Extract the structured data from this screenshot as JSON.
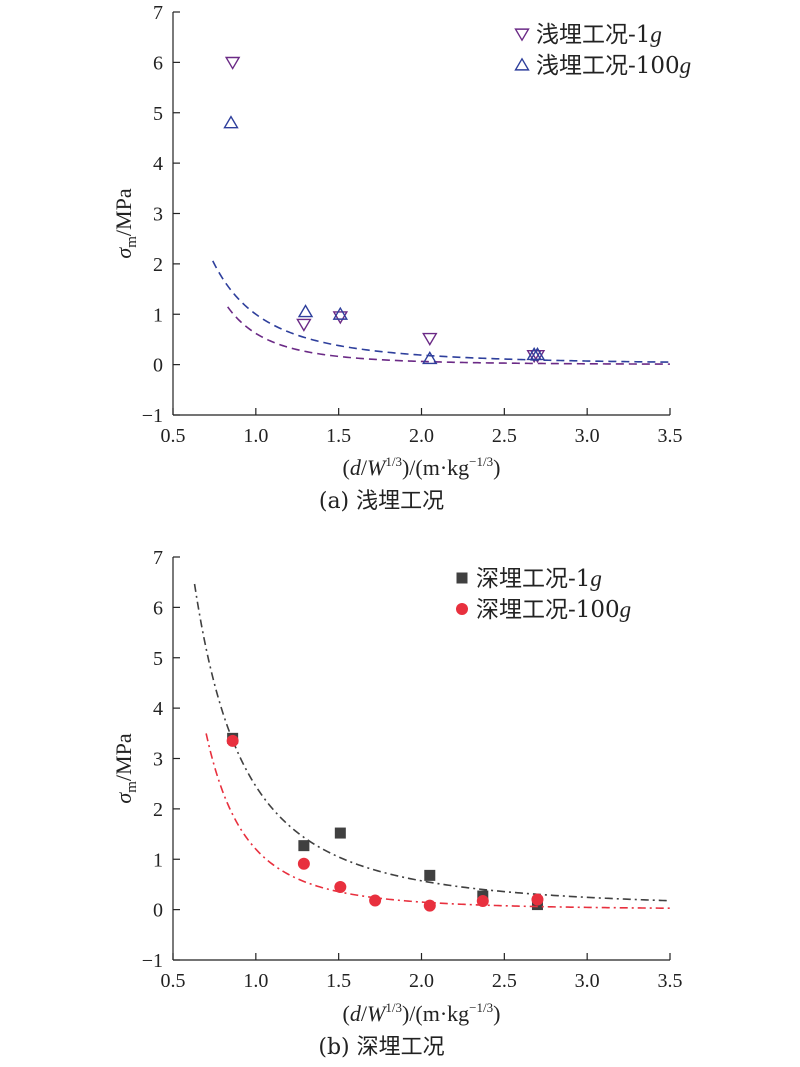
{
  "chart_data": [
    {
      "type": "scatter",
      "caption": "(a) 浅埋工况",
      "xlim": [
        0.5,
        3.5
      ],
      "ylim": [
        -1,
        7
      ],
      "xticks": [
        "0.5",
        "1.0",
        "1.5",
        "2.0",
        "2.5",
        "3.0",
        "3.5"
      ],
      "yticks": [
        "−1",
        "0",
        "1",
        "2",
        "3",
        "4",
        "5",
        "6",
        "7"
      ],
      "ylabel": {
        "sigma": "σ",
        "sub": "m",
        "rest": "/MPa"
      },
      "xlabel": {
        "open": "(",
        "d": "d",
        "slash": "/",
        "W": "W",
        "exp": "1/3",
        "rest": ")/(m·kg",
        "unitexp": "−1/3",
        "close": ")"
      },
      "legend_position": "top-right",
      "series": [
        {
          "name": "浅埋工况-1",
          "name_suffix": "g",
          "marker": "triangle-down",
          "color": "#6b2a86",
          "fit_dash": "8,5",
          "x": [
            0.86,
            1.29,
            1.51,
            2.05,
            2.68,
            2.7
          ],
          "y": [
            6.0,
            0.8,
            0.95,
            0.52,
            0.18,
            0.18
          ],
          "fit": {
            "a": 0.62,
            "b": 3.3,
            "xmin": 0.83,
            "xmax": 3.5
          }
        },
        {
          "name": "浅埋工况-100",
          "name_suffix": "g",
          "marker": "triangle-up",
          "color": "#2e3f9c",
          "fit_dash": "8,5",
          "x": [
            0.85,
            1.3,
            1.51,
            2.05,
            2.68,
            2.7
          ],
          "y": [
            4.8,
            1.05,
            1.0,
            0.12,
            0.2,
            0.2
          ],
          "fit": {
            "a": 1.0,
            "b": 2.4,
            "xmin": 0.74,
            "xmax": 3.5
          }
        }
      ]
    },
    {
      "type": "scatter",
      "caption": "(b) 深埋工况",
      "xlim": [
        0.5,
        3.5
      ],
      "ylim": [
        -1,
        7
      ],
      "xticks": [
        "0.5",
        "1.0",
        "1.5",
        "2.0",
        "2.5",
        "3.0",
        "3.5"
      ],
      "yticks": [
        "−1",
        "0",
        "1",
        "2",
        "3",
        "4",
        "5",
        "6",
        "7"
      ],
      "ylabel": {
        "sigma": "σ",
        "sub": "m",
        "rest": "/MPa"
      },
      "xlabel": {
        "open": "(",
        "d": "d",
        "slash": "/",
        "W": "W",
        "exp": "1/3",
        "rest": ")/(m·kg",
        "unitexp": "−1/3",
        "close": ")"
      },
      "legend_position": "top-right",
      "series": [
        {
          "name": "深埋工况-1",
          "name_suffix": "g",
          "marker": "square",
          "color": "#404040",
          "fit_dash": "8,4,2,4",
          "x": [
            0.86,
            1.29,
            1.51,
            2.05,
            2.37,
            2.7
          ],
          "y": [
            3.4,
            1.27,
            1.52,
            0.68,
            0.27,
            0.1
          ],
          "fit": {
            "a": 2.45,
            "b": 2.1,
            "xmin": 0.63,
            "xmax": 3.5
          }
        },
        {
          "name": "深埋工况-100",
          "name_suffix": "g",
          "marker": "circle",
          "color": "#e8303e",
          "fit_dash": "8,4,2,4",
          "x": [
            0.86,
            1.29,
            1.51,
            1.72,
            2.05,
            2.37,
            2.7
          ],
          "y": [
            3.35,
            0.91,
            0.45,
            0.18,
            0.08,
            0.17,
            0.2
          ],
          "fit": {
            "a": 1.2,
            "b": 3.0,
            "xmin": 0.7,
            "xmax": 3.5
          }
        }
      ]
    }
  ]
}
